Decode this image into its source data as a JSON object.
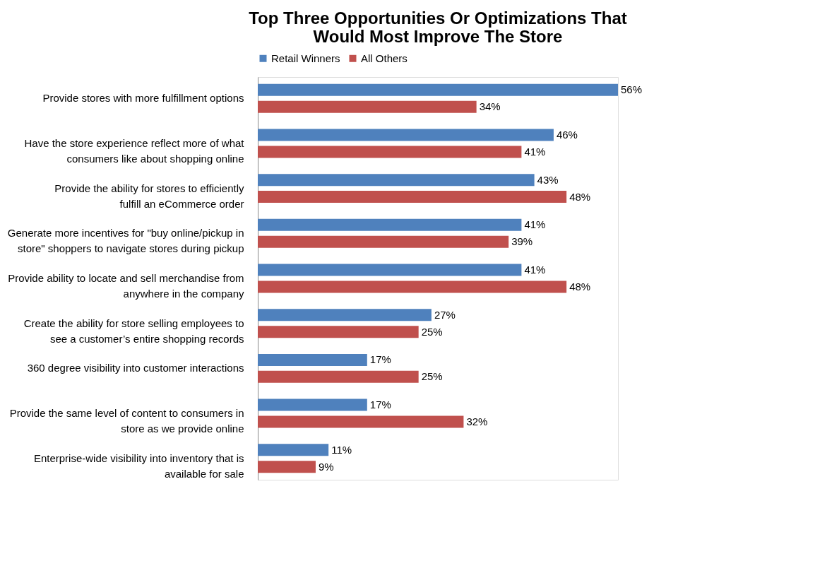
{
  "chart_data": {
    "type": "bar",
    "orientation": "horizontal",
    "title": "Top Three Opportunities Or Optimizations That Would Most Improve The Store",
    "categories": [
      "Provide stores with more fulfillment options",
      "Have the store experience reflect more of what consumers like about shopping online",
      "Provide the ability for stores to efficiently fulfill an eCommerce order",
      "Generate more incentives for \"buy online/pickup in store\" shoppers to navigate stores during pickup",
      "Provide ability to locate and sell merchandise from anywhere in the company",
      "Create the ability for store selling employees to see a customer’s entire shopping records",
      "360 degree visibility into customer interactions",
      "Provide the same level of content to consumers in store as we provide online",
      "Enterprise-wide visibility into inventory that is available for sale"
    ],
    "series": [
      {
        "name": "Retail Winners",
        "color": "#4f81bd",
        "values": [
          56,
          46,
          43,
          41,
          41,
          27,
          17,
          17,
          11
        ],
        "value_labels": [
          "56%",
          "46%",
          "43%",
          "41%",
          "41%",
          "27%",
          "17%",
          "17%",
          "11%"
        ]
      },
      {
        "name": "All Others",
        "color": "#c0504d",
        "values": [
          34,
          41,
          48,
          39,
          48,
          25,
          25,
          32,
          9
        ],
        "value_labels": [
          "34%",
          "41%",
          "48%",
          "39%",
          "48%",
          "25%",
          "25%",
          "32%",
          "9%"
        ]
      }
    ],
    "legend": "top",
    "grid": false
  }
}
